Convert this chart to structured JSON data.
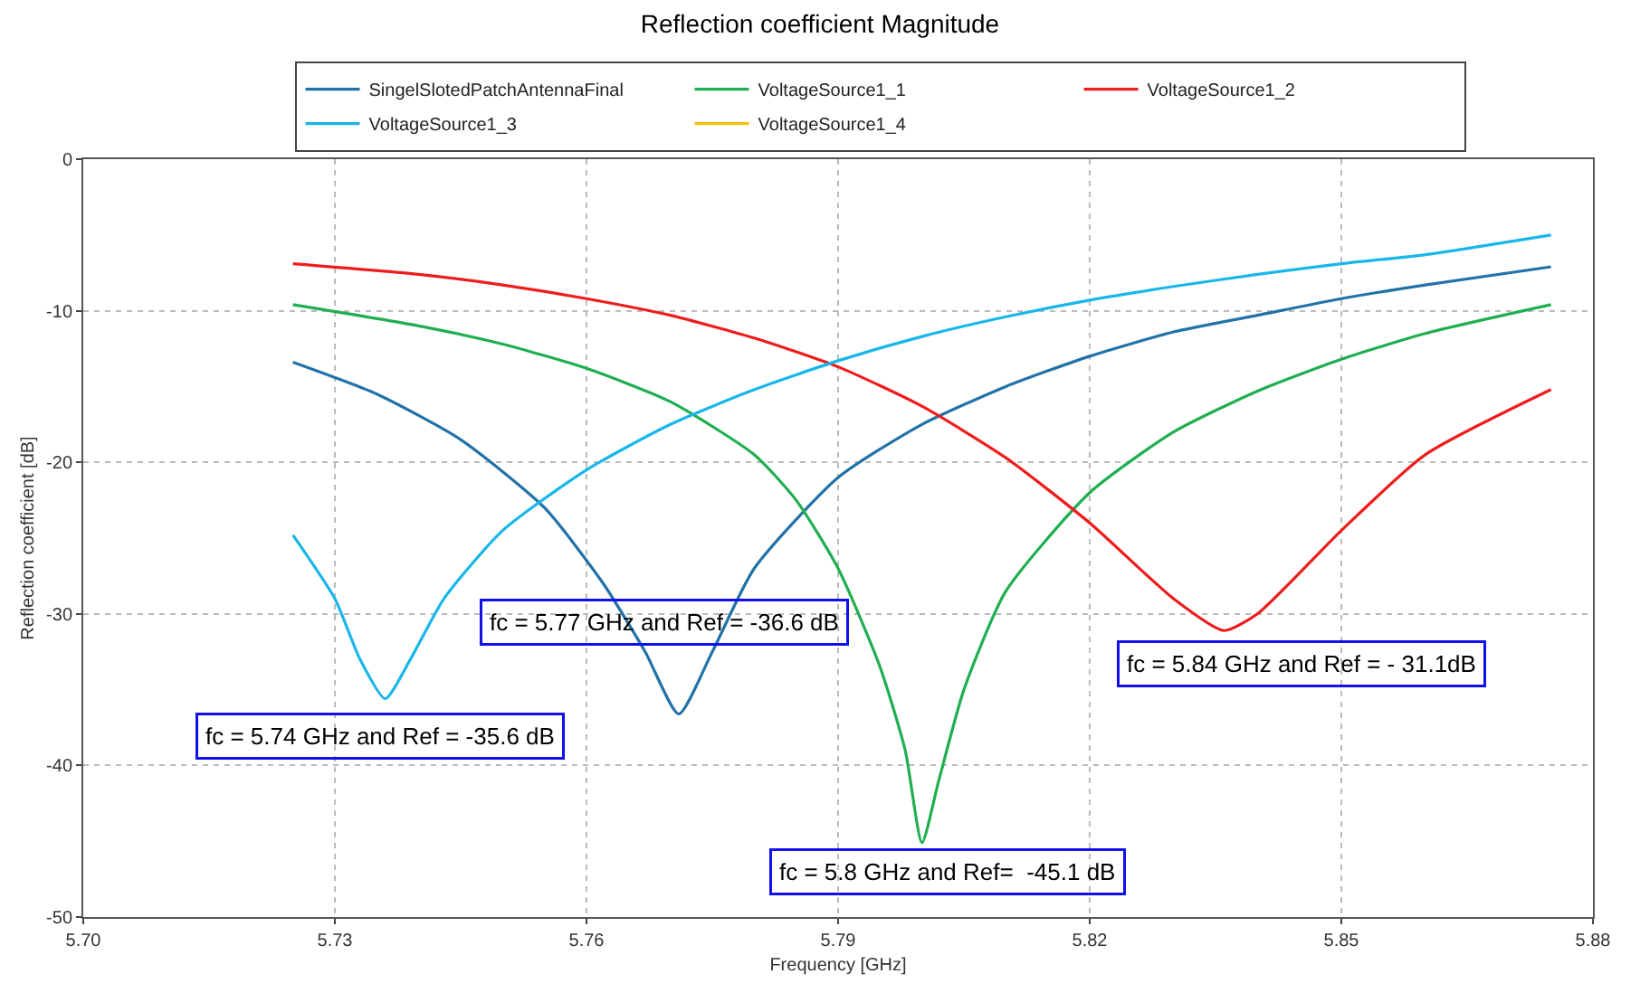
{
  "chart_data": {
    "type": "line",
    "title": "Reflection coefficient Magnitude",
    "xlabel": "Frequency [GHz]",
    "ylabel": "Reflection coefficient [dB]",
    "xlim": [
      5.7,
      5.88
    ],
    "xticks": [
      {
        "value": 5.7,
        "label": "5.70"
      },
      5.73,
      5.76,
      5.79,
      5.82,
      5.85,
      5.88
    ],
    "ylim": [
      -50,
      0
    ],
    "yticks": [
      -50,
      -40,
      -30,
      -20,
      -10,
      0
    ],
    "grid": true,
    "legend": "top",
    "marker": "none",
    "line_style": "solid",
    "series": [
      {
        "name": "SingelSlotedPatchAntennaFinal",
        "color": "#2272a8",
        "x": [
          5.725,
          5.735,
          5.745,
          5.755,
          5.762,
          5.767,
          5.771,
          5.775,
          5.78,
          5.79,
          5.8,
          5.81,
          5.82,
          5.83,
          5.84,
          5.85,
          5.86,
          5.875
        ],
        "values": [
          -13.4,
          -15.5,
          -18.5,
          -23,
          -28,
          -32.5,
          -36.6,
          -32.5,
          -27,
          -21,
          -17.5,
          -15,
          -13,
          -11.4,
          -10.3,
          -9.2,
          -8.3,
          -7.1
        ]
      },
      {
        "name": "VoltageSource1_1",
        "color": "#1fae50",
        "x": [
          5.725,
          5.74,
          5.75,
          5.76,
          5.77,
          5.78,
          5.785,
          5.79,
          5.795,
          5.798,
          5.8,
          5.802,
          5.805,
          5.81,
          5.82,
          5.83,
          5.84,
          5.85,
          5.86,
          5.875
        ],
        "values": [
          -9.6,
          -11,
          -12.2,
          -13.8,
          -16,
          -19.5,
          -22.5,
          -27,
          -33.5,
          -39,
          -45.1,
          -41,
          -35,
          -28.5,
          -22,
          -18,
          -15.3,
          -13.2,
          -11.5,
          -9.6
        ]
      },
      {
        "name": "VoltageSource1_2",
        "color": "#ee1c1c",
        "x": [
          5.725,
          5.74,
          5.75,
          5.76,
          5.77,
          5.78,
          5.79,
          5.8,
          5.81,
          5.82,
          5.83,
          5.836,
          5.84,
          5.85,
          5.86,
          5.875
        ],
        "values": [
          -6.9,
          -7.6,
          -8.3,
          -9.2,
          -10.3,
          -11.8,
          -13.7,
          -16.3,
          -19.7,
          -24,
          -29,
          -31.1,
          -30,
          -24.5,
          -19.5,
          -15.2
        ]
      },
      {
        "name": "VoltageSource1_3",
        "color": "#19b6ea",
        "x": [
          5.725,
          5.73,
          5.733,
          5.736,
          5.739,
          5.743,
          5.75,
          5.76,
          5.77,
          5.78,
          5.79,
          5.8,
          5.81,
          5.82,
          5.83,
          5.84,
          5.85,
          5.86,
          5.875
        ],
        "values": [
          -24.8,
          -29,
          -33,
          -35.6,
          -33,
          -29,
          -24.5,
          -20.5,
          -17.5,
          -15.2,
          -13.3,
          -11.7,
          -10.4,
          -9.3,
          -8.4,
          -7.6,
          -6.9,
          -6.3,
          -5
        ]
      },
      {
        "name": "VoltageSource1_4",
        "color": "#f5c000",
        "values": [
          null
        ]
      }
    ],
    "annotations": [
      "fc = 5.74 GHz and Ref = -35.6 dB",
      "fc = 5.77 GHz and Ref = -36.6 dB",
      "fc = 5.8 GHz and Ref=  -45.1 dB",
      "fc = 5.84 GHz and Ref = - 31.1dB"
    ]
  }
}
